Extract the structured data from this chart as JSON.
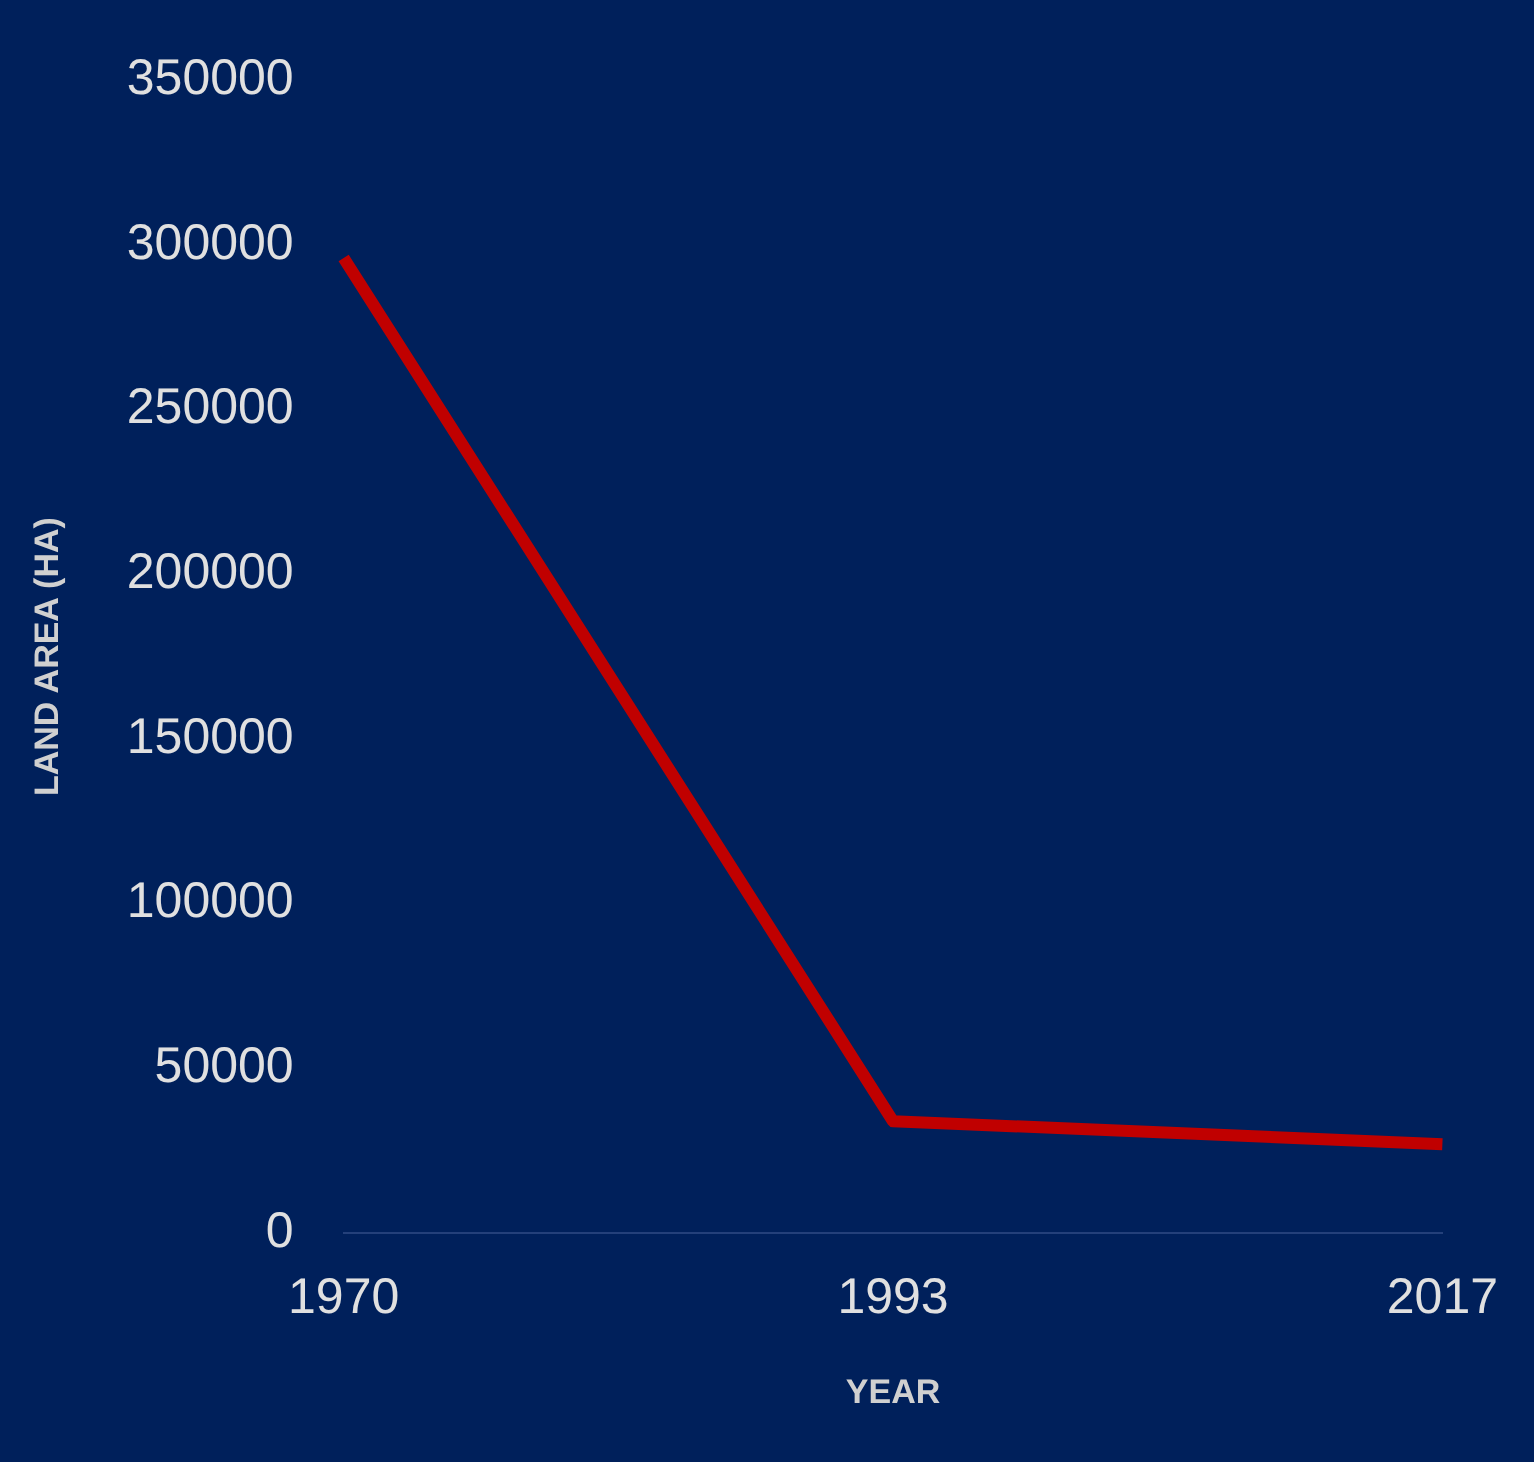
{
  "chart_data": {
    "type": "line",
    "xlabel": "YEAR",
    "ylabel": "LAND AREA (HA)",
    "categories": [
      "1970",
      "1993",
      "2017"
    ],
    "series": [
      {
        "color": "#c00000",
        "values": [
          296000,
          34000,
          27000
        ]
      }
    ],
    "ylim": [
      0,
      350000
    ],
    "yticks": [
      0,
      50000,
      100000,
      150000,
      200000,
      250000,
      300000,
      350000
    ],
    "grid": false,
    "legend": false
  }
}
